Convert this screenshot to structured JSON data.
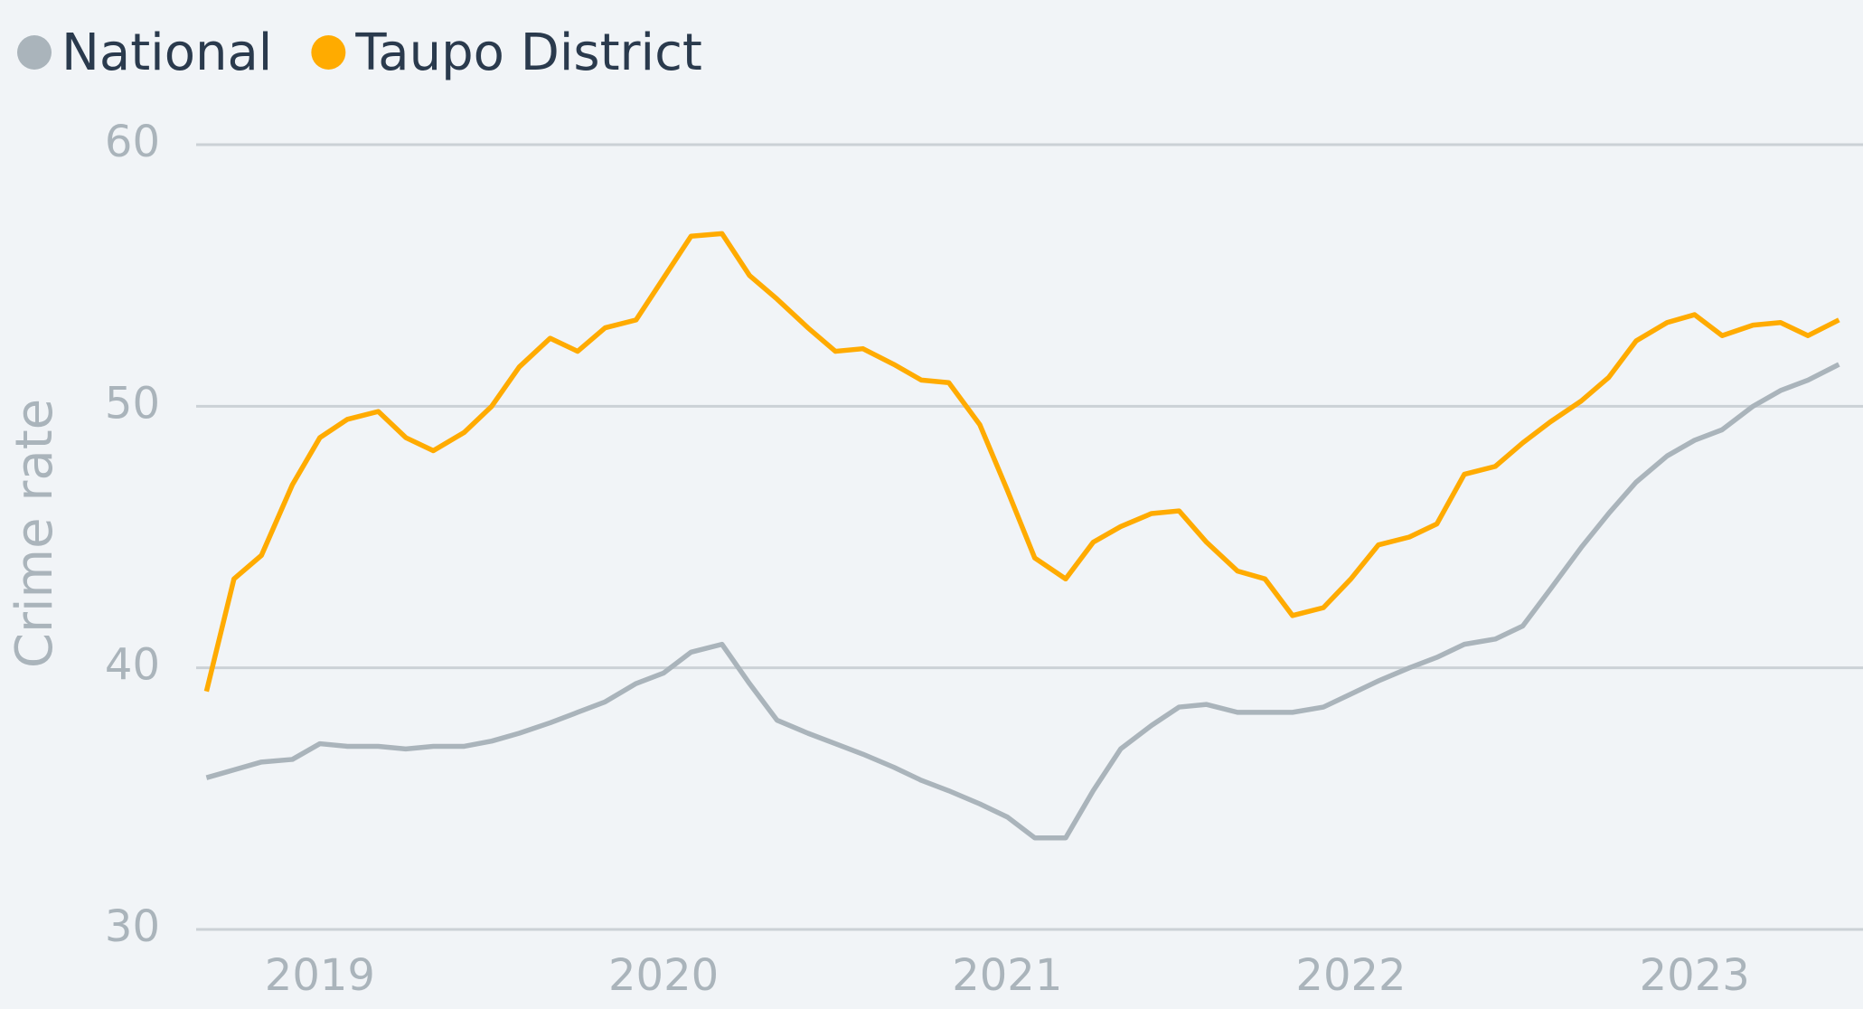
{
  "chart_data": {
    "type": "line",
    "y_label": "Crime rate",
    "x": [
      2018.67,
      2018.75,
      2018.83,
      2018.92,
      2019,
      2019.08,
      2019.17,
      2019.25,
      2019.33,
      2019.42,
      2019.5,
      2019.58,
      2019.67,
      2019.75,
      2019.83,
      2019.92,
      2020,
      2020.08,
      2020.17,
      2020.25,
      2020.33,
      2020.42,
      2020.5,
      2020.58,
      2020.67,
      2020.75,
      2020.83,
      2020.92,
      2021,
      2021.08,
      2021.17,
      2021.25,
      2021.33,
      2021.42,
      2021.5,
      2021.58,
      2021.67,
      2021.75,
      2021.83,
      2021.92,
      2022,
      2022.08,
      2022.17,
      2022.25,
      2022.33,
      2022.42,
      2022.5,
      2022.58,
      2022.67,
      2022.75,
      2022.83,
      2022.92,
      2023,
      2023.08,
      2023.17,
      2023.25,
      2023.33,
      2023.42
    ],
    "series": [
      {
        "name": "National",
        "color": "#aab4bb",
        "values": [
          35.8,
          36.1,
          36.4,
          36.5,
          37.1,
          37.0,
          37.0,
          36.9,
          37.0,
          37.0,
          37.2,
          37.5,
          37.9,
          38.3,
          38.7,
          39.4,
          39.8,
          40.6,
          40.9,
          39.4,
          38.0,
          37.5,
          37.1,
          36.7,
          36.2,
          35.7,
          35.3,
          34.8,
          34.3,
          33.5,
          33.5,
          35.3,
          36.9,
          37.8,
          38.5,
          38.6,
          38.3,
          38.3,
          38.3,
          38.5,
          39.0,
          39.5,
          40.0,
          40.4,
          40.9,
          41.1,
          41.6,
          43.0,
          44.6,
          45.9,
          47.1,
          48.1,
          48.7,
          49.1,
          50.0,
          50.6,
          51.0,
          51.6
        ]
      },
      {
        "name": "Taupo District",
        "color": "#ffab00",
        "values": [
          39.1,
          43.4,
          44.3,
          47.0,
          48.8,
          49.5,
          49.8,
          48.8,
          48.3,
          49.0,
          50.0,
          51.5,
          52.6,
          52.1,
          53.0,
          53.3,
          54.9,
          56.5,
          56.6,
          55.0,
          54.1,
          53.0,
          52.1,
          52.2,
          51.6,
          51.0,
          50.9,
          49.3,
          46.8,
          44.2,
          43.4,
          44.8,
          45.4,
          45.9,
          46.0,
          44.8,
          43.7,
          43.4,
          42.0,
          42.3,
          43.4,
          44.7,
          45.0,
          45.5,
          47.4,
          47.7,
          48.6,
          49.4,
          50.2,
          51.1,
          52.5,
          53.2,
          53.5,
          52.7,
          53.1,
          53.2,
          52.7,
          53.3
        ]
      }
    ],
    "xlim": [
      2018.64,
      2023.49
    ],
    "xticks": [
      2019,
      2020,
      2021,
      2022,
      2023
    ],
    "ylim": [
      30,
      60
    ],
    "yticks": [
      30,
      40,
      50,
      60
    ],
    "grid": true,
    "legend": "top-left"
  }
}
